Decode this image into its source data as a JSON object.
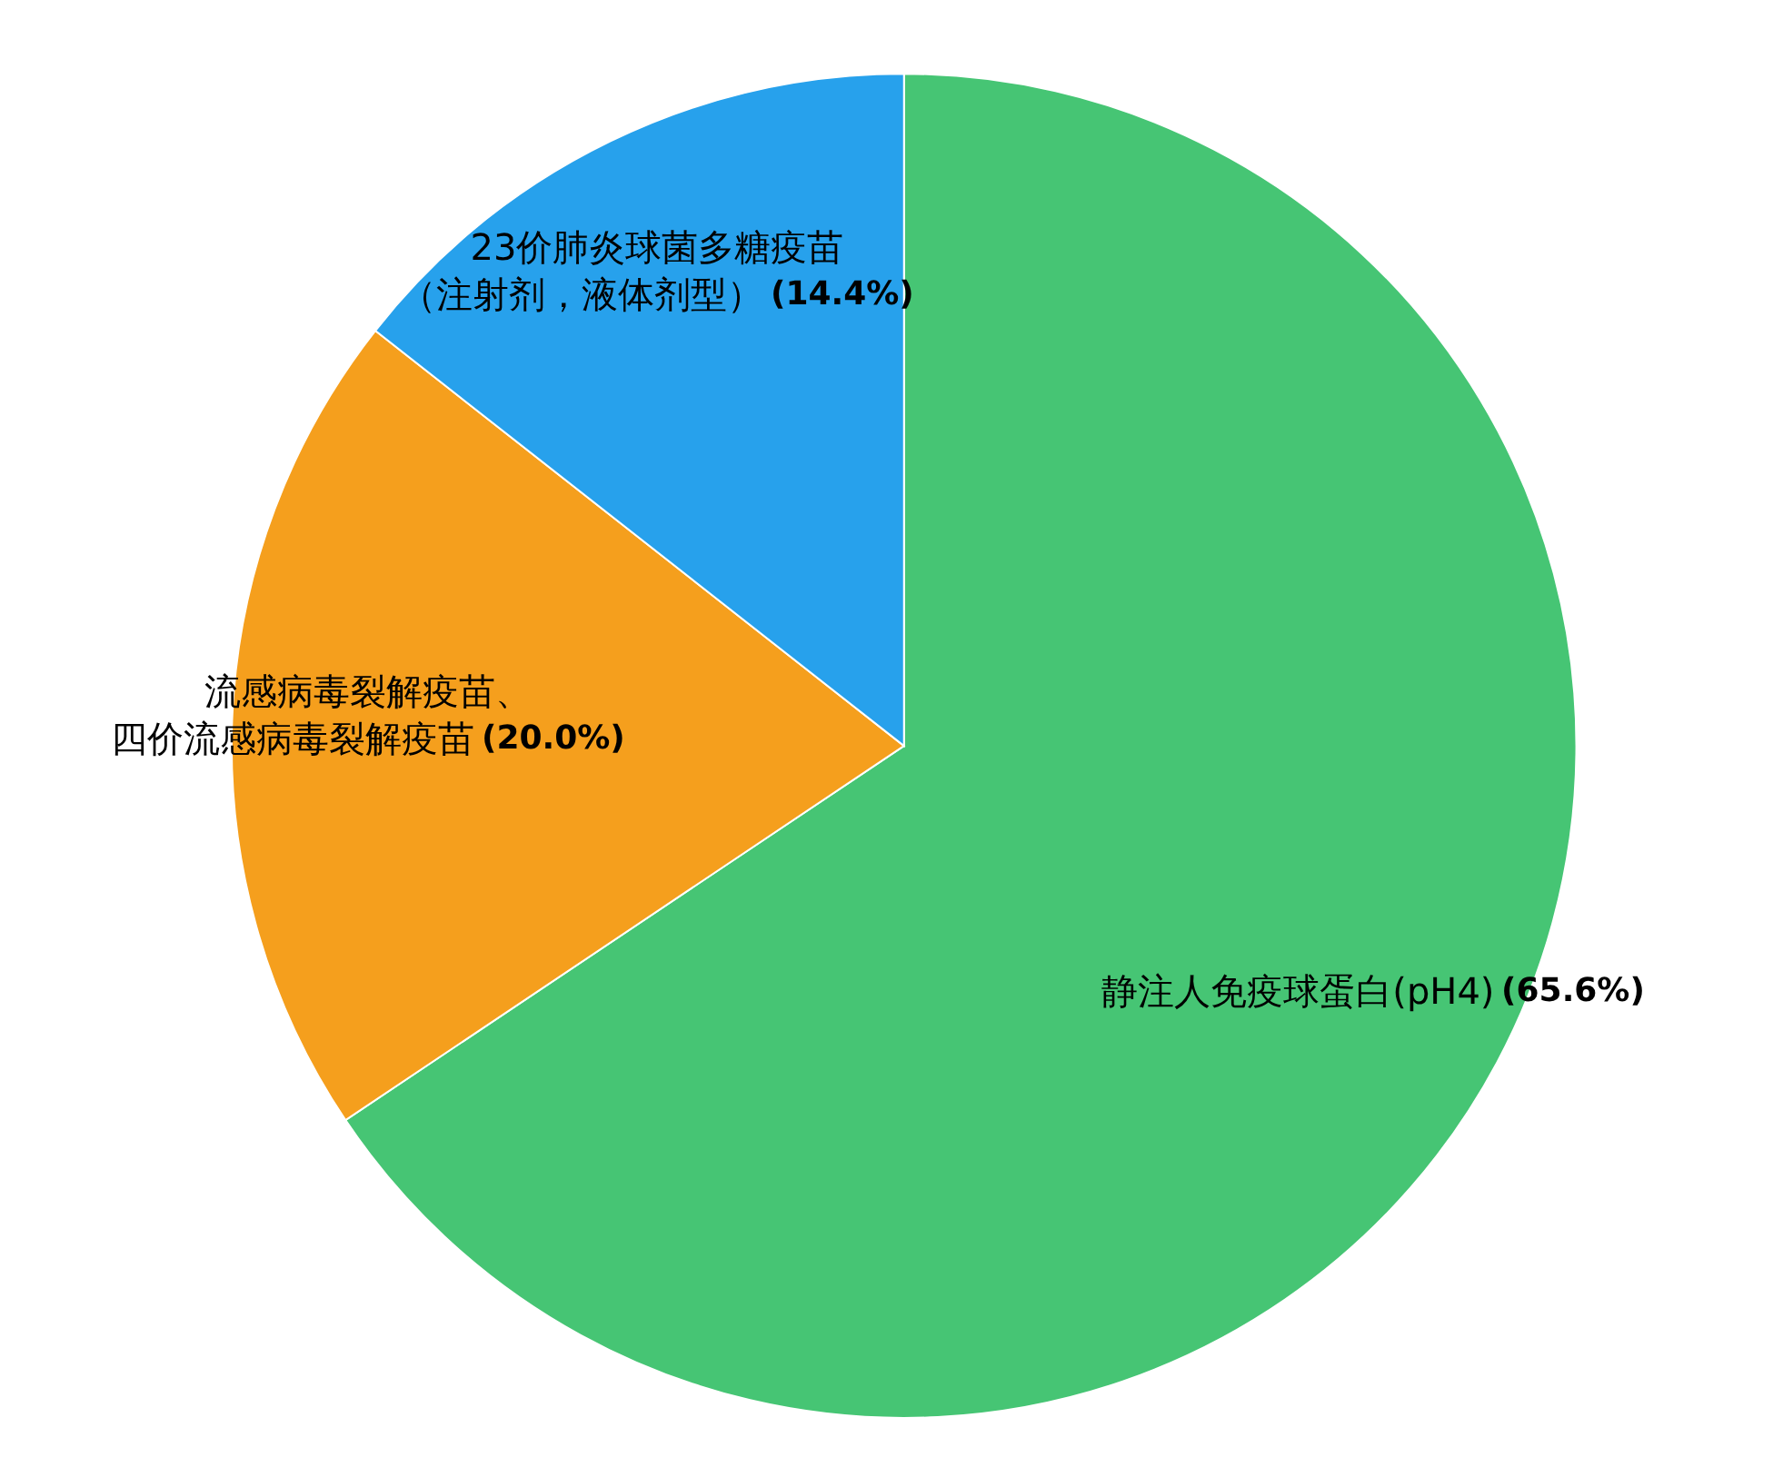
{
  "chart_data": {
    "type": "pie",
    "categories": [
      "静注人免疫球蛋白(pH4)",
      "流感病毒裂解疫苗、四价流感病毒裂解疫苗",
      "23价肺炎球菌多糖疫苗（注射剂，液体剂型）"
    ],
    "values": [
      65.6,
      20.0,
      14.4
    ],
    "value_labels": [
      "(65.6%)",
      "(20.0%)",
      "(14.4%)"
    ],
    "colors": [
      "#46c574",
      "#f59f1d",
      "#27a1ec"
    ]
  }
}
